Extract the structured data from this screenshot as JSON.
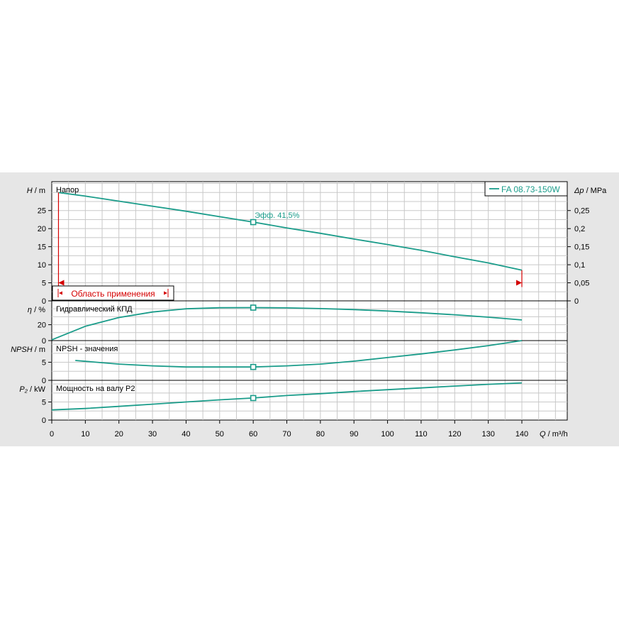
{
  "chart_data": {
    "type": "line",
    "model": "FA 08.73-150W",
    "x_axis": {
      "label_var": "Q",
      "label_unit": "/ m³/h",
      "range": [
        0,
        154
      ],
      "ticks": [
        0,
        10,
        20,
        30,
        40,
        50,
        60,
        70,
        80,
        90,
        100,
        110,
        120,
        130,
        140
      ]
    },
    "panels": [
      {
        "id": "head",
        "title": "Напор",
        "axis_var": "H",
        "axis_unit": "/ m",
        "ylim": [
          0,
          33
        ],
        "ticks": [
          0,
          5,
          10,
          15,
          20,
          25
        ],
        "right_axis": {
          "var": "Δp",
          "unit": "/ MPa",
          "tick_labels": [
            "0",
            "0,05",
            "0,1",
            "0,15",
            "0,2",
            "0,25"
          ],
          "tick_values_m": [
            0,
            5,
            10,
            15,
            20,
            25
          ]
        },
        "series": [
          {
            "color": "#1a9c8a",
            "x": [
              2,
              10,
              20,
              30,
              40,
              50,
              60,
              70,
              80,
              90,
              100,
              110,
              120,
              130,
              140
            ],
            "y": [
              30,
              29,
              27.6,
              26.2,
              24.8,
              23.3,
              21.8,
              20.2,
              18.7,
              17.1,
              15.6,
              14,
              12.2,
              10.5,
              8.5
            ]
          }
        ],
        "marker": {
          "x": 60,
          "y": 21.8
        },
        "annotation": "Эфф.  41,5%",
        "application_range_label": "Область применения",
        "application_range": [
          2,
          140
        ]
      },
      {
        "id": "efficiency",
        "title": "Гидравлический КПД",
        "axis_var": "η",
        "axis_unit": "/ %",
        "ylim": [
          0,
          50
        ],
        "ticks": [
          0,
          20
        ],
        "series": [
          {
            "color": "#1a9c8a",
            "x": [
              0,
              10,
              20,
              30,
              40,
              50,
              60,
              70,
              80,
              90,
              100,
              110,
              120,
              130,
              140
            ],
            "y": [
              1,
              18,
              29,
              36,
              40,
              41.3,
              41.5,
              41.2,
              40.3,
              39,
              37.2,
              35,
              32.5,
              29.5,
              26
            ]
          }
        ],
        "marker": {
          "x": 60,
          "y": 41.5
        }
      },
      {
        "id": "npsh",
        "title": "NPSH - значения",
        "axis_var": "NPSH",
        "axis_unit": "/ m",
        "ylim": [
          0,
          11
        ],
        "ticks": [
          0,
          5
        ],
        "series": [
          {
            "color": "#1a9c8a",
            "x": [
              7,
              20,
              30,
              40,
              50,
              60,
              70,
              80,
              90,
              100,
              110,
              120,
              130,
              140
            ],
            "y": [
              5.5,
              4.5,
              4,
              3.7,
              3.7,
              3.7,
              4,
              4.5,
              5.3,
              6.3,
              7.3,
              8.4,
              9.6,
              11
            ]
          }
        ],
        "marker": {
          "x": 60,
          "y": 3.7
        }
      },
      {
        "id": "power",
        "title": "Мощность на валу P2",
        "axis_var": "P₂",
        "axis_unit": "/ kW",
        "ylim": [
          0,
          11
        ],
        "ticks": [
          0,
          5
        ],
        "series": [
          {
            "color": "#1a9c8a",
            "x": [
              0,
              10,
              20,
              30,
              40,
              50,
              60,
              70,
              80,
              90,
              100,
              110,
              120,
              130,
              140
            ],
            "y": [
              2.8,
              3.2,
              3.8,
              4.4,
              5,
              5.6,
              6.1,
              6.8,
              7.3,
              7.9,
              8.4,
              8.9,
              9.4,
              9.9,
              10.3
            ]
          }
        ],
        "marker": {
          "x": 60,
          "y": 6.1
        }
      }
    ],
    "grid": true,
    "legend": {
      "position": "top-right",
      "label": "FA 08.73-150W"
    },
    "colors": {
      "background": "#e6e6e6",
      "plot": "#ffffff",
      "grid": "#c8c8c8",
      "curve": "#1a9c8a",
      "range_marker": "#d40000"
    }
  }
}
